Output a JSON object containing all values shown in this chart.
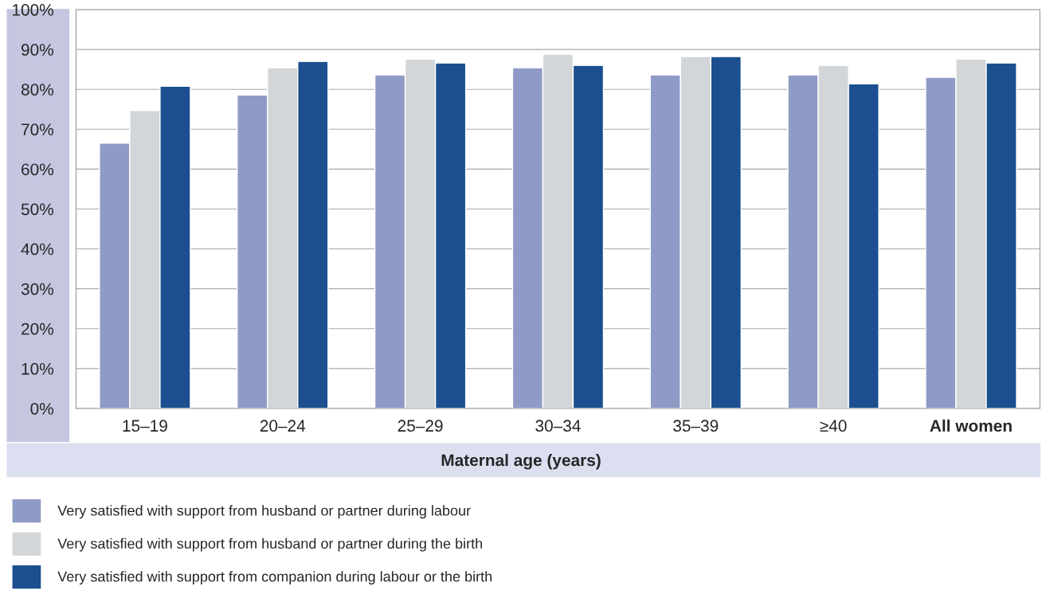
{
  "chart_data": {
    "type": "bar",
    "xlabel": "Maternal age (years)",
    "categories": [
      "15–19",
      "20–24",
      "25–29",
      "30–34",
      "35–39",
      "≥40",
      "All women"
    ],
    "series": [
      {
        "name": "Very satisfied with support from husband or partner during labour",
        "color": "#8f9bc6",
        "values": [
          66.5,
          78.6,
          83.6,
          85.4,
          83.6,
          83.6,
          83.0
        ]
      },
      {
        "name": "Very satisfied with support from husband or partner during the birth",
        "color": "#d2d6d8",
        "values": [
          74.7,
          85.4,
          87.6,
          88.8,
          88.2,
          86.0,
          87.6
        ]
      },
      {
        "name": "Very satisfied with support from companion during labour or the birth",
        "color": "#1b4f8f",
        "values": [
          80.8,
          87.0,
          86.6,
          86.0,
          88.2,
          81.4,
          86.6
        ]
      }
    ],
    "ylim": [
      0,
      100
    ],
    "yticks": [
      {
        "value": 0,
        "label": "0%"
      },
      {
        "value": 10,
        "label": "10%"
      },
      {
        "value": 20,
        "label": "20%"
      },
      {
        "value": 30,
        "label": "30%"
      },
      {
        "value": 40,
        "label": "40%"
      },
      {
        "value": 50,
        "label": "50%"
      },
      {
        "value": 60,
        "label": "60%"
      },
      {
        "value": 70,
        "label": "70%"
      },
      {
        "value": 80,
        "label": "80%"
      },
      {
        "value": 90,
        "label": "90%"
      },
      {
        "value": 100,
        "label": "100%"
      }
    ],
    "grid": "y",
    "legend": "bottom"
  }
}
